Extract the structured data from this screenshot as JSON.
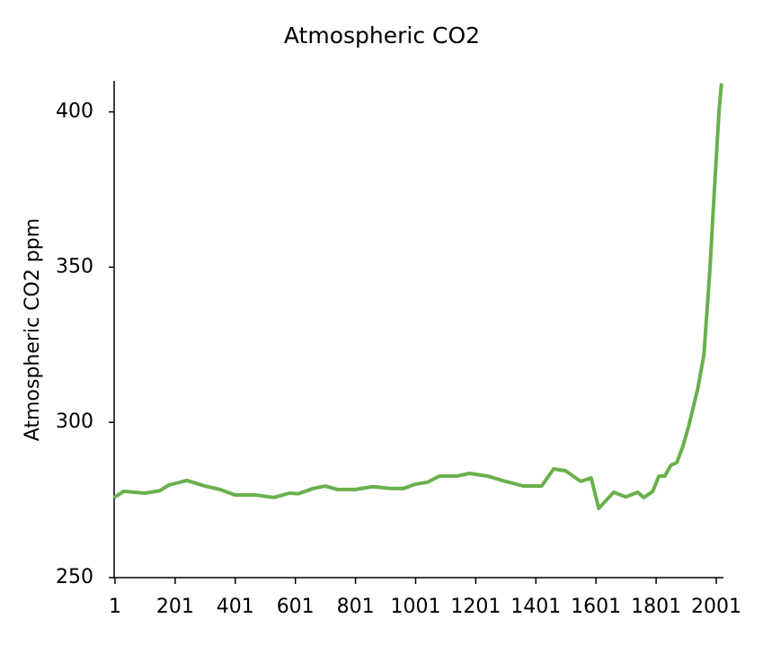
{
  "chart_data": {
    "type": "line",
    "title": "Atmospheric CO2",
    "y_label": "Atmospheric CO2 ppm",
    "x": [
      1,
      30,
      100,
      150,
      180,
      240,
      300,
      350,
      400,
      470,
      530,
      580,
      610,
      660,
      700,
      740,
      800,
      860,
      920,
      960,
      1000,
      1040,
      1080,
      1140,
      1180,
      1240,
      1300,
      1360,
      1420,
      1460,
      1500,
      1550,
      1585,
      1610,
      1660,
      1700,
      1740,
      1760,
      1790,
      1810,
      1830,
      1850,
      1870,
      1890,
      1910,
      1940,
      1960,
      1980,
      1990,
      2010,
      2018
    ],
    "series": [
      {
        "name": "Atmospheric CO2",
        "color": "#6ab04c",
        "values": [
          276.0,
          277.8,
          277.2,
          278.0,
          279.8,
          281.3,
          279.5,
          278.4,
          276.6,
          276.6,
          275.8,
          277.2,
          277.0,
          278.7,
          279.5,
          278.4,
          278.4,
          279.3,
          278.7,
          278.7,
          280.1,
          280.7,
          282.7,
          282.7,
          283.6,
          282.7,
          281.0,
          279.5,
          279.5,
          285.0,
          284.4,
          281.0,
          282.1,
          272.3,
          277.5,
          276.0,
          277.5,
          275.8,
          277.8,
          282.7,
          282.7,
          286.2,
          287.1,
          292.3,
          299.0,
          311.1,
          321.8,
          349.3,
          366.7,
          400.0,
          408.7
        ]
      }
    ],
    "xlim": [
      1,
      2022
    ],
    "xticks": [
      1,
      201,
      401,
      601,
      801,
      1001,
      1201,
      1401,
      1601,
      1801,
      2001
    ],
    "ylim": [
      250,
      410
    ],
    "yticks": [
      250,
      300,
      350,
      400
    ],
    "grid": false
  }
}
